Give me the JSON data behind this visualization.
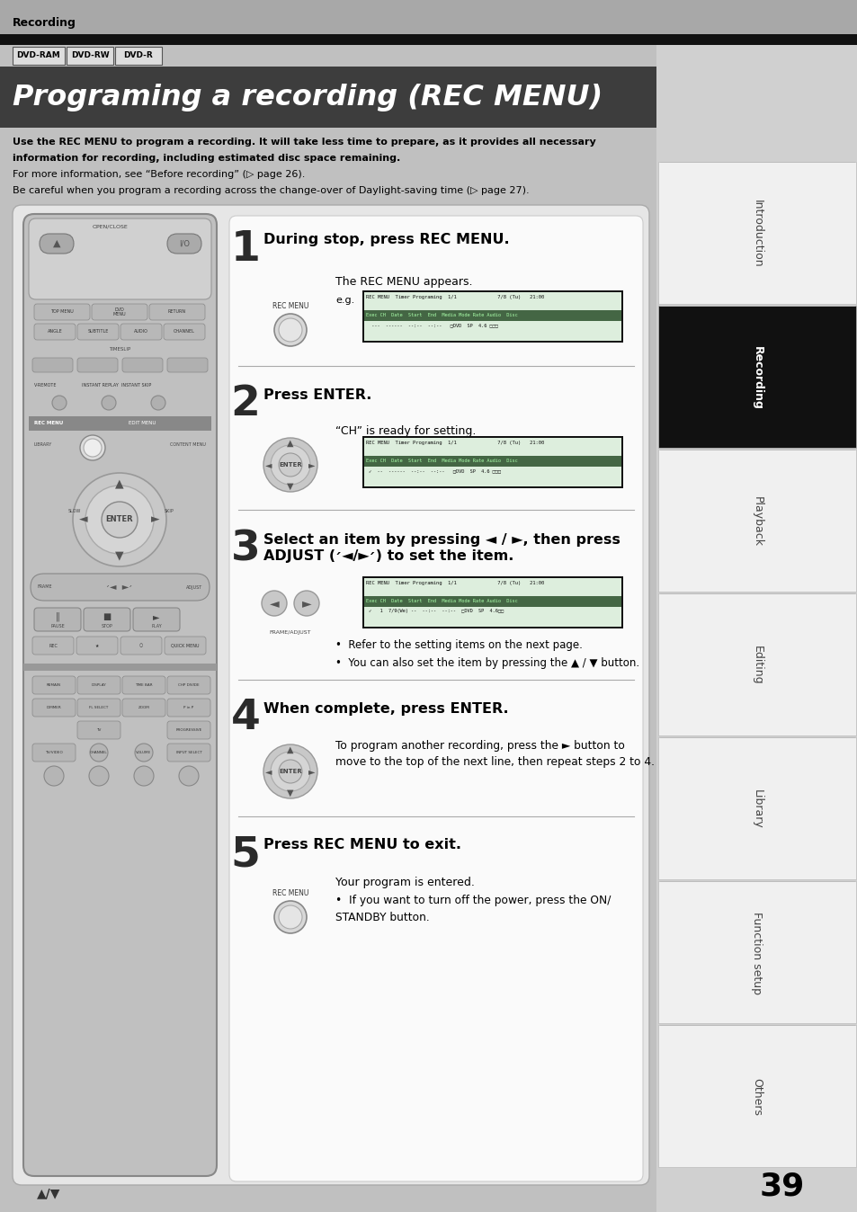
{
  "page_bg": "#c0c0c0",
  "header_bar_bg": "#a0a0a0",
  "header_text": "Recording",
  "black_bar_color": "#111111",
  "tab_labels": [
    "DVD-RAM",
    "DVD-RW",
    "DVD-R"
  ],
  "title_bg": "#3d3d3d",
  "title_text": "Programing a recording (REC MENU)",
  "title_color": "#ffffff",
  "intro_lines": [
    "Use the REC MENU to program a recording. It will take less time to prepare, as it provides all necessary",
    "information for recording, including estimated disc space remaining.",
    "For more information, see “Before recording” (▷ page 26).",
    "Be careful when you program a recording across the change-over of Daylight-saving time (▷ page 27)."
  ],
  "intro_bold": [
    true,
    true,
    false,
    false
  ],
  "panel_bg": "#e8e8e8",
  "step_bg": "#f4f4f4",
  "step1_num": "1",
  "step1_title": "During stop, press REC MENU.",
  "step1_desc": "The REC MENU appears.",
  "step1_eg": "e.g.",
  "step2_num": "2",
  "step2_title": "Press ENTER.",
  "step2_desc": "“CH” is ready for setting.",
  "step3_num": "3",
  "step3_title": "Select an item by pressing ◄ / ►, then press",
  "step3_title2": "ADJUST (׳◄/►׳) to set the item.",
  "step3_b1": "•  Refer to the setting items on the next page.",
  "step3_b2": "•  You can also set the item by pressing the ▲ / ▼ button.",
  "step4_num": "4",
  "step4_title": "When complete, press ENTER.",
  "step4_desc": "To program another recording, press the ► button to",
  "step4_desc2": "move to the top of the next line, then repeat steps 2 to 4.",
  "step5_num": "5",
  "step5_title": "Press REC MENU to exit.",
  "step5_desc1": "Your program is entered.",
  "step5_b1": "•  If you want to turn off the power, press the ON/",
  "step5_b2": "STANDBY button.",
  "sidebar_labels": [
    "Introduction",
    "Recording",
    "Playback",
    "Editing",
    "Library",
    "Function setup",
    "Others"
  ],
  "sidebar_active": "Recording",
  "page_number": "39"
}
